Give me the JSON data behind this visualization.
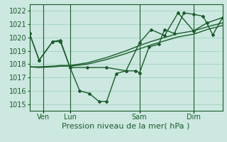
{
  "xlabel": "Pression niveau de la mer( hPa )",
  "bg_color": "#cce8e0",
  "grid_color": "#99ccbb",
  "line_color": "#1a5c2a",
  "ylim": [
    1014.5,
    1022.5
  ],
  "yticks": [
    1015,
    1016,
    1017,
    1018,
    1019,
    1020,
    1021,
    1022
  ],
  "day_labels": [
    "Ven",
    "Lun",
    "Sam",
    "Dim"
  ],
  "day_positions": [
    7,
    21,
    57,
    85
  ],
  "day_vlines": [
    7,
    21,
    57,
    85
  ],
  "xlim": [
    0,
    100
  ],
  "series_volatile_x": [
    0,
    5,
    12,
    16,
    21,
    26,
    31,
    36,
    40,
    45,
    50,
    55,
    57,
    62,
    67,
    70,
    75,
    80,
    85,
    90,
    95,
    100
  ],
  "series_volatile_y": [
    1020.3,
    1018.3,
    1019.7,
    1019.8,
    1017.75,
    1016.0,
    1015.8,
    1015.2,
    1015.2,
    1017.3,
    1017.5,
    1017.5,
    1017.35,
    1019.3,
    1019.5,
    1020.6,
    1020.3,
    1021.85,
    1021.75,
    1021.6,
    1020.2,
    1021.5
  ],
  "series_smooth1_x": [
    0,
    5,
    12,
    16,
    21,
    30,
    40,
    50,
    57,
    63,
    70,
    77,
    85,
    92,
    100
  ],
  "series_smooth1_y": [
    1017.8,
    1017.8,
    1017.85,
    1017.9,
    1017.9,
    1018.1,
    1018.5,
    1019.0,
    1019.4,
    1019.7,
    1020.0,
    1020.3,
    1020.5,
    1020.8,
    1021.1
  ],
  "series_smooth2_x": [
    0,
    5,
    12,
    16,
    21,
    30,
    40,
    50,
    57,
    63,
    70,
    77,
    85,
    92,
    100
  ],
  "series_smooth2_y": [
    1017.8,
    1017.75,
    1017.8,
    1017.85,
    1017.85,
    1018.0,
    1018.35,
    1018.8,
    1019.15,
    1019.45,
    1019.75,
    1020.05,
    1020.25,
    1020.6,
    1020.9
  ],
  "series_marked_x": [
    0,
    5,
    12,
    16,
    21,
    30,
    40,
    50,
    57,
    63,
    70,
    77,
    85,
    92,
    100
  ],
  "series_marked_y": [
    1020.3,
    1018.3,
    1019.7,
    1019.7,
    1017.75,
    1017.75,
    1017.75,
    1017.5,
    1019.6,
    1020.6,
    1020.15,
    1021.85,
    1020.5,
    1021.1,
    1021.5
  ],
  "xlabel_fontsize": 8,
  "tick_fontsize": 7,
  "linewidth": 1.0,
  "marker": "D",
  "markersize": 2.0
}
